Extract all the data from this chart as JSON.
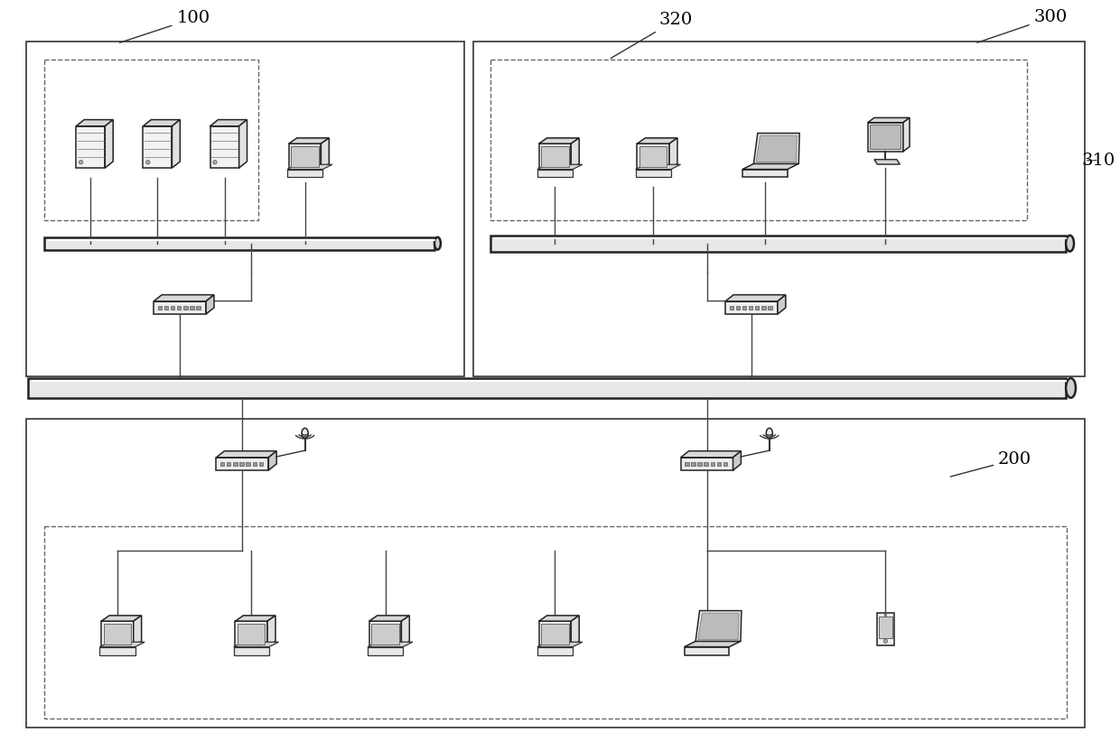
{
  "bg_color": "#ffffff",
  "label_100": "100",
  "label_300": "300",
  "label_320": "320",
  "label_310": "310",
  "label_200": "200",
  "fig_width": 12.4,
  "fig_height": 8.32
}
